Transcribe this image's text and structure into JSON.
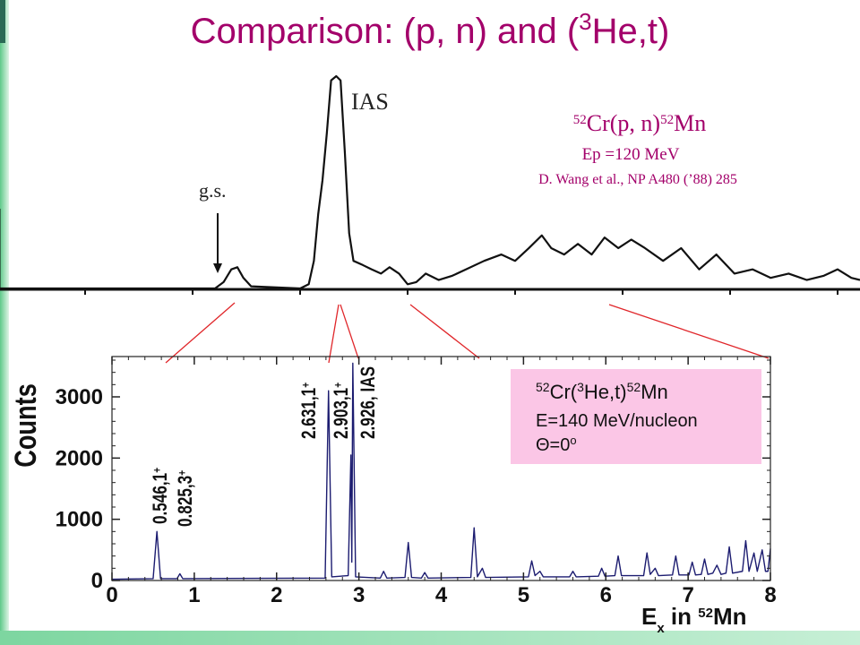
{
  "title": {
    "prefix": "Comparison: (p, n) and (",
    "sup": "3",
    "suffix": "He,t)"
  },
  "chart_data": [
    {
      "type": "line",
      "x": [
        0,
        25,
        26,
        26.9,
        27.6,
        28.3,
        29.2,
        34.9,
        35.9,
        36.5,
        37,
        37.5,
        38,
        38.5,
        39.1,
        39.6,
        40.1,
        40.6,
        41.1,
        42.2,
        43.2,
        44.3,
        45.3,
        46.4,
        47.4,
        48.4,
        49.5,
        51,
        52.6,
        54.2,
        56.3,
        58.3,
        59.9,
        61.5,
        63,
        64.1,
        65.6,
        67.2,
        68.8,
        70.3,
        71.9,
        73.4,
        75,
        77.1,
        79.2,
        81.3,
        83.3,
        85.4,
        87.5,
        89.6,
        91.7,
        93.8,
        95.8,
        97.4,
        99,
        100
      ],
      "values": [
        0,
        0,
        3,
        9,
        10,
        5,
        1,
        0,
        2,
        13,
        35,
        51,
        73,
        98,
        100,
        98,
        64,
        26,
        13,
        11,
        9,
        7,
        10,
        7,
        2,
        3,
        7,
        4,
        6,
        9,
        13,
        16,
        13,
        19,
        25,
        19,
        16,
        21,
        16,
        24,
        19,
        23,
        19,
        13,
        19,
        9,
        16,
        7,
        9,
        5,
        7,
        4,
        6,
        9,
        5,
        4
      ],
      "xlim": [
        0,
        100
      ],
      "ylim": [
        0,
        100
      ],
      "color": "#111111",
      "annotations": {
        "ias": "IAS",
        "gs": "g.s.",
        "reaction": {
          "sup1": "52",
          "a": "Cr(p, n)",
          "sup2": "52",
          "b": "Mn"
        },
        "energy": "Ep =120 MeV",
        "reference": "D. Wang et al., NP A480 (’88) 285"
      }
    },
    {
      "type": "line",
      "x": [
        0,
        0.5,
        0.546,
        0.59,
        0.79,
        0.825,
        0.86,
        2.59,
        2.631,
        2.67,
        2.87,
        2.903,
        2.914,
        2.926,
        2.96,
        3.26,
        3.3,
        3.34,
        3.56,
        3.6,
        3.64,
        3.76,
        3.8,
        3.84,
        4.36,
        4.4,
        4.44,
        4.5,
        4.54,
        5.06,
        5.1,
        5.14,
        5.2,
        5.24,
        5.56,
        5.6,
        5.64,
        5.91,
        5.95,
        5.99,
        6.11,
        6.15,
        6.19,
        6.46,
        6.5,
        6.54,
        6.6,
        6.64,
        6.81,
        6.85,
        6.89,
        7.01,
        7.05,
        7.09,
        7.16,
        7.2,
        7.24,
        7.3,
        7.35,
        7.4,
        7.46,
        7.5,
        7.54,
        7.66,
        7.7,
        7.74,
        7.8,
        7.84,
        7.9,
        7.94,
        7.97,
        8.0
      ],
      "values": [
        20,
        30,
        800,
        30,
        30,
        110,
        30,
        40,
        3100,
        60,
        80,
        2050,
        300,
        3550,
        60,
        40,
        150,
        40,
        50,
        620,
        50,
        40,
        130,
        40,
        50,
        860,
        60,
        200,
        50,
        60,
        320,
        80,
        150,
        60,
        60,
        150,
        60,
        70,
        200,
        70,
        80,
        400,
        80,
        80,
        450,
        100,
        200,
        80,
        90,
        400,
        90,
        90,
        300,
        90,
        100,
        350,
        100,
        120,
        250,
        100,
        120,
        550,
        120,
        150,
        650,
        150,
        450,
        150,
        500,
        150,
        150,
        520
      ],
      "xlim": [
        0,
        8
      ],
      "ylim": [
        0,
        3600
      ],
      "xticks": [
        0,
        1,
        2,
        3,
        4,
        5,
        6,
        7,
        8
      ],
      "yticks": [
        0,
        1000,
        2000,
        3000
      ],
      "color": "#1c1c70",
      "ylabel": "Counts",
      "xlabel": {
        "a": "E",
        "sub": "x",
        "b": " in ",
        "sup": "52",
        "c": "Mn"
      },
      "peak_labels": [
        {
          "text": "0.546,1",
          "sup": "+"
        },
        {
          "text": "0.825,3",
          "sup": "+"
        },
        {
          "text": "2.631,1",
          "sup": "+"
        },
        {
          "text": "2.903,1",
          "sup": "+"
        },
        {
          "text": "2.926, IAS"
        }
      ],
      "legend": {
        "reaction": {
          "sup1": "52",
          "a": "Cr(",
          "sup2": "3",
          "b": "He,t)",
          "sup3": "52",
          "c": "Mn"
        },
        "energy": "E=140 MeV/nucleon",
        "angle": {
          "a": "Θ=0",
          "sup": "o"
        }
      }
    }
  ]
}
